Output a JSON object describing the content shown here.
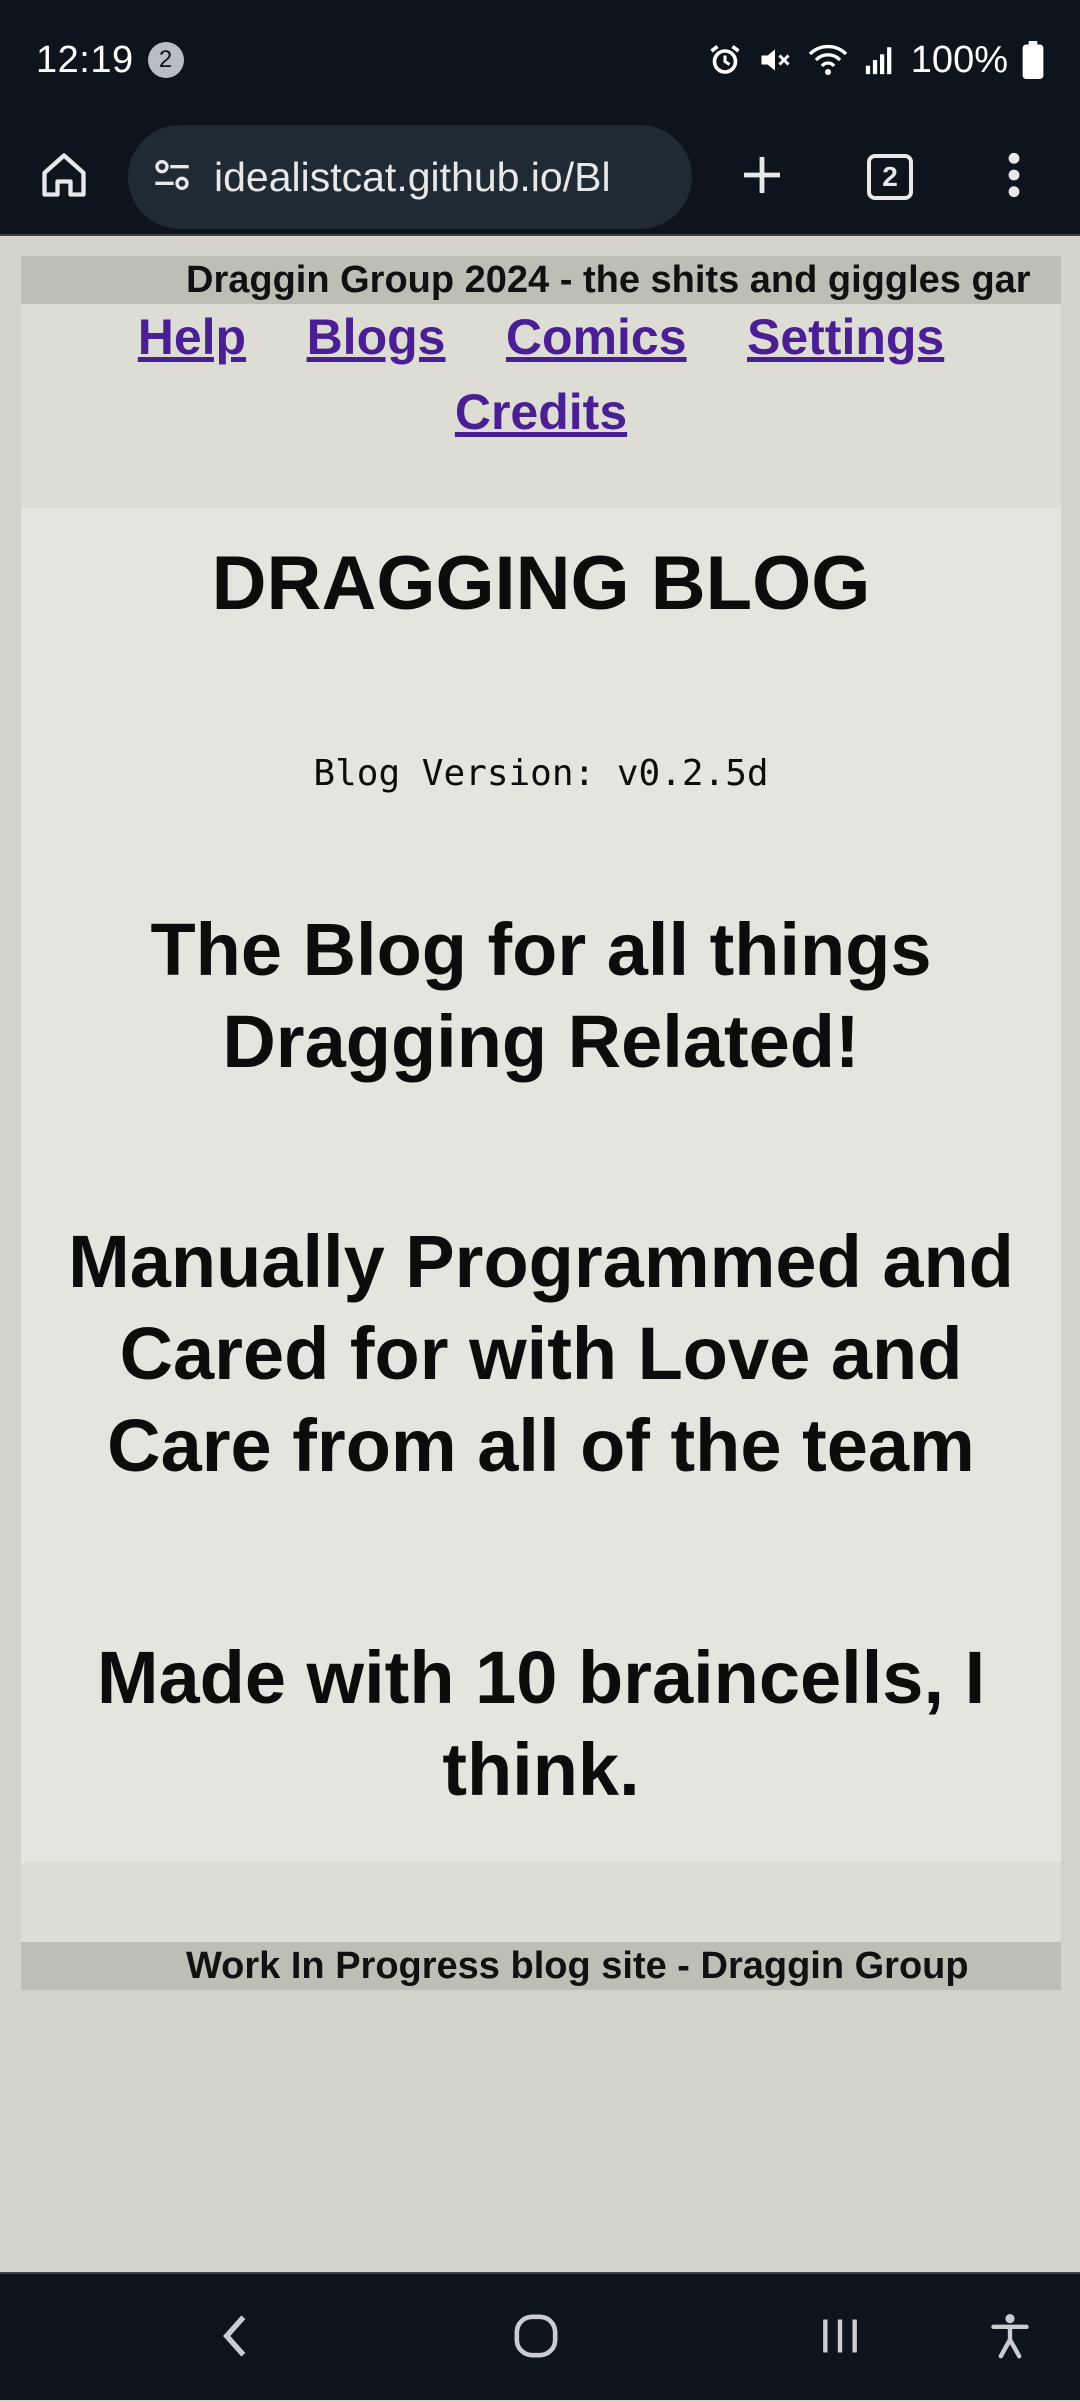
{
  "status_bar": {
    "time": "12:19",
    "notification_count": "2",
    "battery": "100%",
    "icons": [
      "alarm-icon",
      "mute-icon",
      "wifi-icon",
      "signal-icon",
      "battery-icon"
    ]
  },
  "browser": {
    "url": "idealistcat.github.io/Bl",
    "tab_count": "2",
    "icons": [
      "home-icon",
      "site-info-icon",
      "plus-icon",
      "tabs-icon",
      "more-vert-icon"
    ]
  },
  "site": {
    "marquee_top": "Draggin Group 2024 - the shits and giggles gar",
    "nav": {
      "help": "Help",
      "blogs": "Blogs",
      "comics": "Comics",
      "settings": "Settings",
      "credits": "Credits"
    },
    "title": "DRAGGING BLOG",
    "version": "Blog Version: v0.2.5d",
    "tagline": "The Blog for all things Dragging Related!",
    "credit_line": "Manually Programmed and Cared for with Love and Care from all of the team",
    "braincell_line": "Made with 10 braincells, I think.",
    "marquee_bottom": "Work In Progress blog site - Draggin Group"
  },
  "colors": {
    "system_bar": "#0d141b",
    "link": "#4b1f94",
    "page_bg": "#d3d3cb",
    "main_box": "#e5e5e0",
    "marquee_bg": "#bdbfb6"
  },
  "nav_bar": {
    "icons": [
      "back-icon",
      "home-circle-icon",
      "recents-icon",
      "accessibility-icon"
    ]
  }
}
